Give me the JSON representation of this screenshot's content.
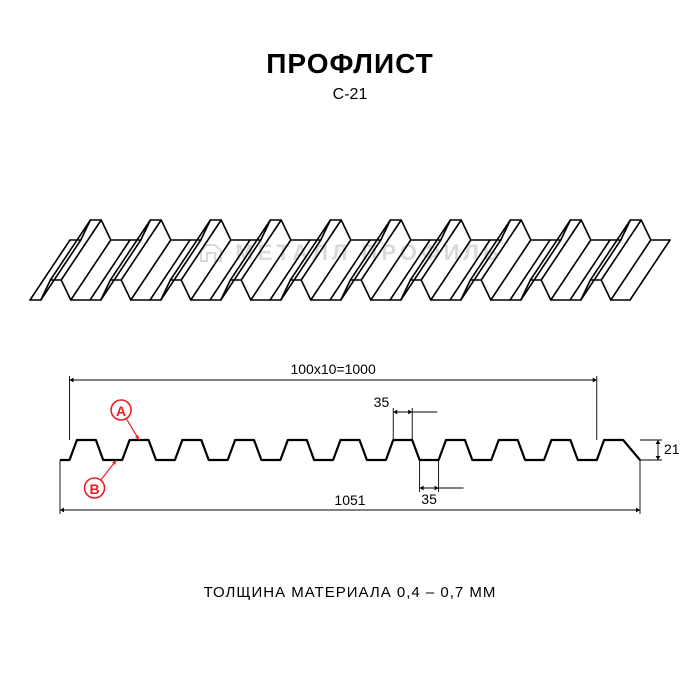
{
  "title": "ПРОФЛИСТ",
  "subtitle": "С-21",
  "watermark": "МЕТАЛЛ ПРОФИЛЬ",
  "footer": "ТОЛЩИНА МАТЕРИАЛА 0,4 – 0,7 ММ",
  "iso": {
    "ribs": 10,
    "stroke": "#000000",
    "stroke_width": 1.6,
    "slant_dx": 40,
    "slant_dy": -60,
    "amplitude": 20,
    "pitch": 60
  },
  "section": {
    "stroke": "#000000",
    "stroke_width": 2.2,
    "dim_stroke": "#000000",
    "dim_stroke_width": 0.9,
    "ribs": 11,
    "top_width_ratio": 0.36,
    "bottom_width_ratio": 0.36,
    "amplitude": 20,
    "pitch": 48,
    "dimensions": {
      "pitch_formula": "100х10=1000",
      "total_width": "1051",
      "height": "21",
      "top_flat": "35",
      "bottom_flat": "35"
    },
    "markers": {
      "a": {
        "label": "A",
        "color": "#ee1d24"
      },
      "b": {
        "label": "B",
        "color": "#ee1d24"
      }
    }
  },
  "colors": {
    "background": "#ffffff",
    "line": "#000000",
    "watermark": "#d9d9d9",
    "accent": "#ee1d24"
  }
}
